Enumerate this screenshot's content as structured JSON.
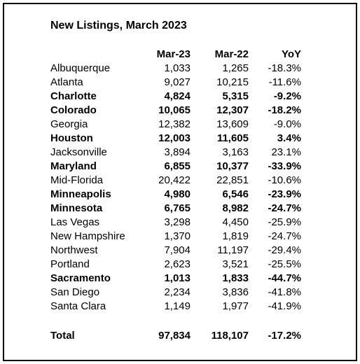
{
  "title": "New Listings, March 2023",
  "table": {
    "header": [
      "Mar-23",
      "Mar-22",
      "YoY"
    ],
    "rows": [
      {
        "cells": [
          "Albuquerque",
          "1,033",
          "1,265",
          "-18.3%"
        ],
        "bold": false
      },
      {
        "cells": [
          "Atlanta",
          "9,027",
          "10,215",
          "-11.6%"
        ],
        "bold": false
      },
      {
        "cells": [
          "Charlotte",
          "4,824",
          "5,315",
          "-9.2%"
        ],
        "bold": true
      },
      {
        "cells": [
          "Colorado",
          "10,065",
          "12,307",
          "-18.2%"
        ],
        "bold": true
      },
      {
        "cells": [
          "Georgia",
          "12,382",
          "13,609",
          "-9.0%"
        ],
        "bold": false
      },
      {
        "cells": [
          "Houston",
          "12,003",
          "11,605",
          "3.4%"
        ],
        "bold": true
      },
      {
        "cells": [
          "Jacksonville",
          "3,894",
          "3,163",
          "23.1%"
        ],
        "bold": false
      },
      {
        "cells": [
          "Maryland",
          "6,855",
          "10,377",
          "-33.9%"
        ],
        "bold": true
      },
      {
        "cells": [
          "Mid-Florida",
          "20,422",
          "22,851",
          "-10.6%"
        ],
        "bold": false
      },
      {
        "cells": [
          "Minneapolis",
          "4,980",
          "6,546",
          "-23.9%"
        ],
        "bold": true
      },
      {
        "cells": [
          "Minnesota",
          "6,765",
          "8,982",
          "-24.7%"
        ],
        "bold": true
      },
      {
        "cells": [
          "Las Vegas",
          "3,298",
          "4,450",
          "-25.9%"
        ],
        "bold": false
      },
      {
        "cells": [
          "New Hampshire",
          "1,370",
          "1,819",
          "-24.7%"
        ],
        "bold": false
      },
      {
        "cells": [
          "Northwest",
          "7,904",
          "11,197",
          "-29.4%"
        ],
        "bold": false
      },
      {
        "cells": [
          "Portland",
          "2,623",
          "3,521",
          "-25.5%"
        ],
        "bold": false
      },
      {
        "cells": [
          "Sacramento",
          "1,013",
          "1,833",
          "-44.7%"
        ],
        "bold": true
      },
      {
        "cells": [
          "San Diego",
          "2,234",
          "3,836",
          "-41.8%"
        ],
        "bold": false
      },
      {
        "cells": [
          "Santa Clara",
          "1,149",
          "1,977",
          "-41.9%"
        ],
        "bold": false
      }
    ],
    "total": [
      "Total",
      "97,834",
      "118,107",
      "-17.2%"
    ]
  }
}
